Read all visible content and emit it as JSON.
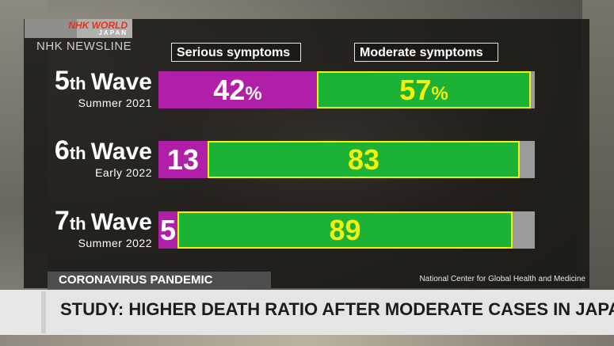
{
  "broadcaster": {
    "logo_text": "NHK WORLD",
    "logo_sub": "JAPAN",
    "program": "NHK NEWSLINE"
  },
  "topic_label": "CORONAVIRUS PANDEMIC",
  "headline": "STUDY: HIGHER DEATH RATIO AFTER MODERATE CASES IN JAPAN",
  "source": "National Center for Global Health and Medicine",
  "colors": {
    "serious": "#b11ea7",
    "moderate": "#1bb236",
    "moderate_border": "#f2f20a",
    "other": "#9b9b9b",
    "moderate_text": "#f4f00c"
  },
  "chart_data": {
    "type": "bar",
    "orientation": "horizontal",
    "stacked": true,
    "title": "",
    "xlabel": "",
    "ylabel": "",
    "xlim": [
      0,
      100
    ],
    "legend": [
      "Serious symptoms",
      "Moderate symptoms"
    ],
    "legend_position": "top",
    "categories": [
      {
        "wave_num": "5",
        "wave_suffix": "th",
        "wave_word": "Wave",
        "period": "Summer 2021"
      },
      {
        "wave_num": "6",
        "wave_suffix": "th",
        "wave_word": "Wave",
        "period": "Early 2022"
      },
      {
        "wave_num": "7",
        "wave_suffix": "th",
        "wave_word": "Wave",
        "period": "Summer 2022"
      }
    ],
    "series": [
      {
        "name": "Serious symptoms",
        "values": [
          42,
          13,
          5
        ],
        "labels": [
          "42",
          "13",
          "5"
        ],
        "label_suffix": [
          "%",
          "",
          ""
        ]
      },
      {
        "name": "Moderate symptoms",
        "values": [
          57,
          83,
          89
        ],
        "labels": [
          "57",
          "83",
          "89"
        ],
        "label_suffix": [
          "%",
          "",
          ""
        ]
      }
    ]
  }
}
